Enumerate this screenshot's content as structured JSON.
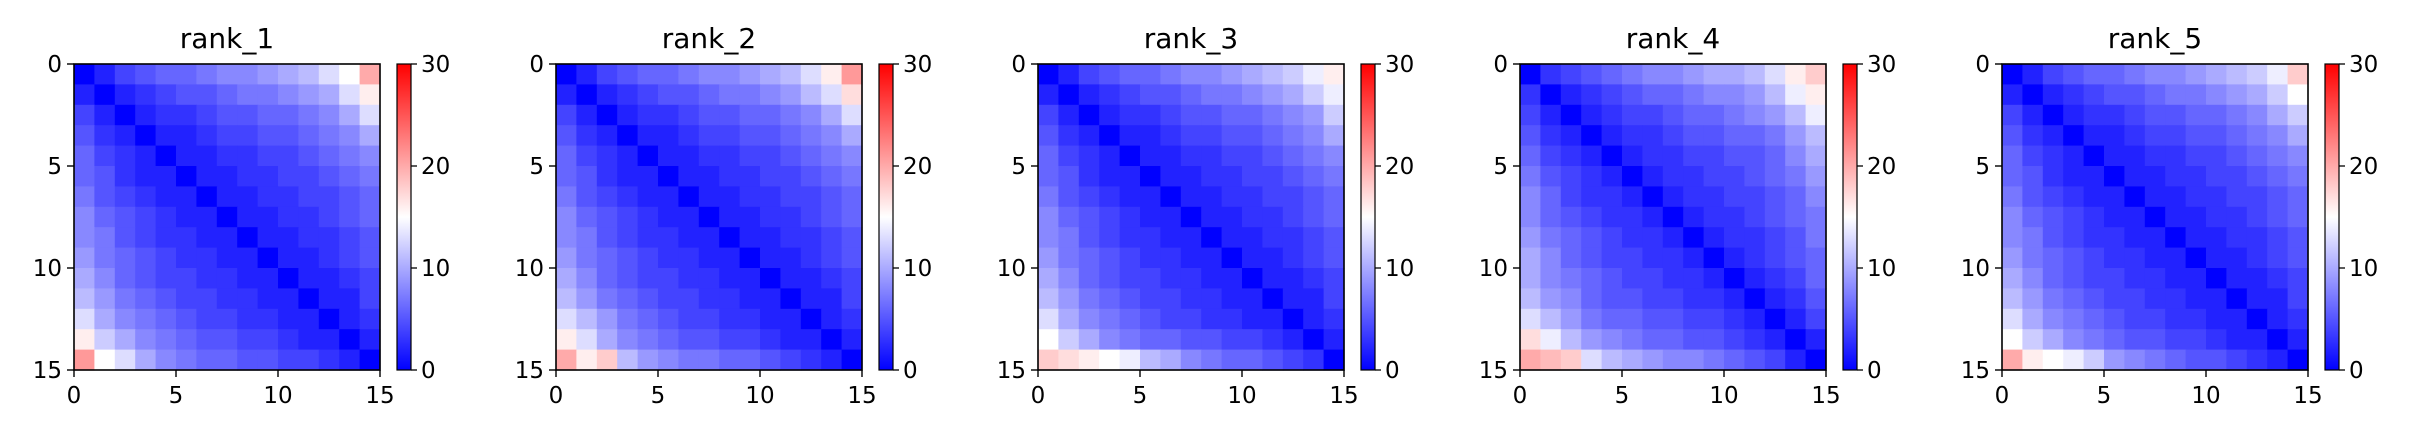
{
  "figure": {
    "colormap": {
      "name": "bwr",
      "low_color": "#0000ff",
      "mid_color": "#ffffff",
      "high_color": "#ff0000"
    },
    "axis_color": "#000000",
    "background": "#ffffff"
  },
  "chart_data": [
    {
      "type": "heatmap",
      "title": "rank_1",
      "xlim": [
        0,
        15
      ],
      "ylim": [
        15,
        0
      ],
      "x_ticks": [
        0,
        5,
        10,
        15
      ],
      "y_ticks": [
        0,
        5,
        10,
        15
      ],
      "colorbar": {
        "range": [
          0,
          30
        ],
        "ticks": [
          0,
          10,
          20,
          30
        ]
      },
      "diagonal_value": 0,
      "values": [
        [
          0,
          2,
          4,
          5,
          6,
          6,
          7,
          8,
          8,
          9,
          10,
          11,
          13,
          15,
          20
        ],
        [
          2,
          0,
          2,
          3,
          4,
          5,
          5,
          6,
          7,
          7,
          8,
          9,
          10,
          13,
          16
        ],
        [
          4,
          2,
          0,
          2,
          3,
          3,
          4,
          5,
          5,
          6,
          6,
          7,
          8,
          10,
          13
        ],
        [
          5,
          3,
          2,
          0,
          2,
          2,
          3,
          4,
          4,
          5,
          5,
          6,
          7,
          8,
          10
        ],
        [
          6,
          4,
          3,
          2,
          0,
          2,
          2,
          3,
          3,
          4,
          4,
          5,
          6,
          7,
          8
        ],
        [
          6,
          5,
          3,
          2,
          2,
          0,
          2,
          2,
          3,
          3,
          4,
          4,
          5,
          6,
          7
        ],
        [
          7,
          5,
          4,
          3,
          2,
          2,
          0,
          2,
          2,
          3,
          3,
          4,
          4,
          5,
          6
        ],
        [
          8,
          6,
          5,
          4,
          3,
          2,
          2,
          0,
          2,
          2,
          3,
          3,
          4,
          5,
          6
        ],
        [
          8,
          7,
          5,
          4,
          3,
          3,
          2,
          2,
          0,
          2,
          2,
          3,
          3,
          4,
          5
        ],
        [
          9,
          7,
          6,
          5,
          4,
          3,
          3,
          2,
          2,
          0,
          2,
          2,
          3,
          4,
          5
        ],
        [
          10,
          8,
          6,
          5,
          4,
          4,
          3,
          3,
          2,
          2,
          0,
          2,
          2,
          3,
          4
        ],
        [
          11,
          9,
          7,
          6,
          5,
          4,
          4,
          3,
          3,
          2,
          2,
          0,
          2,
          2,
          4
        ],
        [
          13,
          10,
          8,
          7,
          6,
          5,
          4,
          4,
          3,
          3,
          2,
          2,
          0,
          2,
          3
        ],
        [
          16,
          12,
          10,
          8,
          7,
          6,
          5,
          5,
          4,
          4,
          3,
          2,
          2,
          0,
          2
        ],
        [
          21,
          15,
          13,
          10,
          8,
          7,
          6,
          6,
          5,
          5,
          4,
          4,
          3,
          2,
          0
        ]
      ]
    },
    {
      "type": "heatmap",
      "title": "rank_2",
      "xlim": [
        0,
        15
      ],
      "ylim": [
        15,
        0
      ],
      "x_ticks": [
        0,
        5,
        10,
        15
      ],
      "y_ticks": [
        0,
        5,
        10,
        15
      ],
      "colorbar": {
        "range": [
          0,
          30
        ],
        "ticks": [
          0,
          10,
          20,
          30
        ]
      },
      "diagonal_value": 0,
      "values": [
        [
          0,
          2,
          4,
          5,
          6,
          6,
          7,
          8,
          8,
          9,
          10,
          11,
          13,
          16,
          21
        ],
        [
          2,
          0,
          2,
          3,
          4,
          5,
          5,
          6,
          7,
          7,
          8,
          9,
          11,
          13,
          17
        ],
        [
          4,
          2,
          0,
          2,
          3,
          3,
          4,
          5,
          5,
          6,
          6,
          7,
          8,
          10,
          13
        ],
        [
          5,
          3,
          2,
          0,
          2,
          2,
          3,
          4,
          4,
          5,
          5,
          6,
          7,
          8,
          10
        ],
        [
          6,
          4,
          3,
          2,
          0,
          2,
          2,
          3,
          3,
          4,
          4,
          5,
          6,
          7,
          8
        ],
        [
          6,
          5,
          3,
          2,
          2,
          0,
          2,
          2,
          3,
          3,
          4,
          4,
          5,
          6,
          7
        ],
        [
          7,
          5,
          4,
          3,
          2,
          2,
          0,
          2,
          2,
          3,
          3,
          4,
          4,
          5,
          6
        ],
        [
          8,
          6,
          5,
          4,
          3,
          2,
          2,
          0,
          2,
          2,
          3,
          3,
          4,
          5,
          6
        ],
        [
          8,
          7,
          5,
          4,
          3,
          3,
          2,
          2,
          0,
          2,
          2,
          3,
          3,
          4,
          5
        ],
        [
          9,
          7,
          6,
          5,
          4,
          3,
          3,
          2,
          2,
          0,
          2,
          2,
          3,
          4,
          5
        ],
        [
          10,
          8,
          6,
          5,
          4,
          4,
          3,
          3,
          2,
          2,
          0,
          2,
          2,
          3,
          4
        ],
        [
          11,
          9,
          7,
          6,
          5,
          4,
          4,
          3,
          3,
          2,
          2,
          0,
          2,
          2,
          4
        ],
        [
          13,
          11,
          9,
          7,
          6,
          5,
          4,
          4,
          3,
          3,
          2,
          2,
          0,
          2,
          3
        ],
        [
          16,
          13,
          10,
          8,
          7,
          6,
          5,
          5,
          4,
          4,
          3,
          2,
          2,
          0,
          2
        ],
        [
          20,
          16,
          18,
          11,
          9,
          8,
          7,
          7,
          6,
          6,
          5,
          4,
          3,
          2,
          0
        ]
      ]
    },
    {
      "type": "heatmap",
      "title": "rank_3",
      "xlim": [
        0,
        15
      ],
      "ylim": [
        15,
        0
      ],
      "x_ticks": [
        0,
        5,
        10,
        15
      ],
      "y_ticks": [
        0,
        5,
        10,
        15
      ],
      "colorbar": {
        "range": [
          0,
          30
        ],
        "ticks": [
          0,
          10,
          20,
          30
        ]
      },
      "diagonal_value": 0,
      "values": [
        [
          0,
          2,
          4,
          5,
          6,
          6,
          7,
          8,
          8,
          9,
          10,
          11,
          12,
          14,
          16
        ],
        [
          2,
          0,
          2,
          3,
          4,
          5,
          5,
          6,
          7,
          7,
          8,
          9,
          10,
          12,
          14
        ],
        [
          4,
          2,
          0,
          2,
          3,
          3,
          4,
          5,
          5,
          6,
          6,
          7,
          8,
          9,
          12
        ],
        [
          5,
          3,
          2,
          0,
          2,
          2,
          3,
          4,
          4,
          5,
          5,
          6,
          7,
          8,
          10
        ],
        [
          6,
          4,
          3,
          2,
          0,
          2,
          2,
          3,
          3,
          4,
          4,
          5,
          6,
          7,
          8
        ],
        [
          6,
          5,
          3,
          2,
          2,
          0,
          2,
          2,
          3,
          3,
          4,
          4,
          5,
          6,
          7
        ],
        [
          7,
          5,
          4,
          3,
          2,
          2,
          0,
          2,
          2,
          3,
          3,
          4,
          4,
          5,
          6
        ],
        [
          8,
          6,
          5,
          4,
          3,
          2,
          2,
          0,
          2,
          2,
          3,
          3,
          4,
          5,
          6
        ],
        [
          8,
          7,
          5,
          4,
          3,
          3,
          2,
          2,
          0,
          2,
          2,
          3,
          3,
          4,
          5
        ],
        [
          9,
          7,
          6,
          5,
          4,
          3,
          3,
          2,
          2,
          0,
          2,
          2,
          3,
          4,
          5
        ],
        [
          10,
          8,
          6,
          5,
          4,
          4,
          3,
          3,
          2,
          2,
          0,
          2,
          2,
          3,
          4
        ],
        [
          11,
          9,
          7,
          6,
          5,
          4,
          4,
          3,
          3,
          2,
          2,
          0,
          2,
          2,
          4
        ],
        [
          13,
          10,
          8,
          7,
          6,
          5,
          4,
          4,
          3,
          3,
          2,
          2,
          0,
          2,
          3
        ],
        [
          15,
          12,
          10,
          8,
          7,
          6,
          6,
          5,
          5,
          4,
          4,
          3,
          2,
          0,
          2
        ],
        [
          18,
          17,
          16,
          15,
          14,
          11,
          10,
          8,
          7,
          6,
          6,
          5,
          4,
          3,
          0
        ]
      ]
    },
    {
      "type": "heatmap",
      "title": "rank_4",
      "xlim": [
        0,
        15
      ],
      "ylim": [
        15,
        0
      ],
      "x_ticks": [
        0,
        5,
        10,
        15
      ],
      "y_ticks": [
        0,
        5,
        10,
        15
      ],
      "colorbar": {
        "range": [
          0,
          30
        ],
        "ticks": [
          0,
          10,
          20,
          30
        ]
      },
      "diagonal_value": 0,
      "values": [
        [
          0,
          3,
          4,
          5,
          6,
          7,
          8,
          8,
          9,
          10,
          10,
          11,
          13,
          16,
          18
        ],
        [
          3,
          0,
          2,
          3,
          4,
          5,
          6,
          6,
          7,
          8,
          8,
          9,
          11,
          14,
          16
        ],
        [
          4,
          2,
          0,
          2,
          3,
          4,
          4,
          5,
          6,
          6,
          7,
          8,
          9,
          11,
          14
        ],
        [
          5,
          3,
          2,
          0,
          2,
          3,
          3,
          4,
          5,
          5,
          6,
          6,
          7,
          9,
          11
        ],
        [
          6,
          4,
          3,
          2,
          0,
          2,
          3,
          3,
          4,
          4,
          5,
          5,
          6,
          8,
          10
        ],
        [
          7,
          5,
          4,
          3,
          2,
          0,
          2,
          3,
          3,
          4,
          4,
          5,
          6,
          7,
          9
        ],
        [
          8,
          6,
          4,
          3,
          3,
          2,
          0,
          2,
          3,
          3,
          4,
          4,
          5,
          6,
          8
        ],
        [
          8,
          6,
          5,
          4,
          3,
          3,
          2,
          0,
          2,
          3,
          3,
          4,
          5,
          6,
          7
        ],
        [
          9,
          7,
          6,
          5,
          4,
          3,
          3,
          2,
          0,
          2,
          3,
          3,
          4,
          5,
          7
        ],
        [
          10,
          8,
          6,
          5,
          4,
          4,
          3,
          3,
          2,
          0,
          2,
          3,
          4,
          5,
          6
        ],
        [
          10,
          8,
          7,
          6,
          5,
          4,
          4,
          3,
          3,
          2,
          0,
          2,
          3,
          4,
          6
        ],
        [
          11,
          9,
          8,
          6,
          5,
          5,
          4,
          4,
          3,
          3,
          2,
          0,
          2,
          3,
          5
        ],
        [
          13,
          11,
          9,
          7,
          6,
          6,
          5,
          5,
          4,
          4,
          3,
          2,
          0,
          2,
          4
        ],
        [
          17,
          14,
          11,
          9,
          8,
          7,
          6,
          6,
          5,
          5,
          4,
          3,
          2,
          0,
          2
        ],
        [
          20,
          19,
          18,
          13,
          11,
          10,
          9,
          8,
          8,
          7,
          6,
          5,
          4,
          2,
          0
        ]
      ]
    },
    {
      "type": "heatmap",
      "title": "rank_5",
      "xlim": [
        0,
        15
      ],
      "ylim": [
        15,
        0
      ],
      "x_ticks": [
        0,
        5,
        10,
        15
      ],
      "y_ticks": [
        0,
        5,
        10,
        15
      ],
      "colorbar": {
        "range": [
          0,
          30
        ],
        "ticks": [
          0,
          10,
          20,
          30
        ]
      },
      "diagonal_value": 0,
      "values": [
        [
          0,
          2,
          4,
          5,
          6,
          6,
          7,
          8,
          8,
          9,
          10,
          11,
          12,
          14,
          18
        ],
        [
          2,
          0,
          2,
          3,
          4,
          5,
          5,
          6,
          7,
          7,
          8,
          9,
          10,
          12,
          15
        ],
        [
          4,
          2,
          0,
          2,
          3,
          3,
          4,
          5,
          5,
          6,
          6,
          7,
          8,
          10,
          12
        ],
        [
          5,
          3,
          2,
          0,
          2,
          2,
          3,
          4,
          4,
          5,
          5,
          6,
          7,
          8,
          10
        ],
        [
          6,
          4,
          3,
          2,
          0,
          2,
          2,
          3,
          3,
          4,
          4,
          5,
          6,
          7,
          8
        ],
        [
          6,
          5,
          3,
          2,
          2,
          0,
          2,
          2,
          3,
          3,
          4,
          4,
          5,
          6,
          7
        ],
        [
          7,
          5,
          4,
          3,
          2,
          2,
          0,
          2,
          2,
          3,
          3,
          4,
          4,
          5,
          6
        ],
        [
          8,
          6,
          5,
          4,
          3,
          2,
          2,
          0,
          2,
          2,
          3,
          3,
          4,
          5,
          6
        ],
        [
          8,
          7,
          5,
          4,
          3,
          3,
          2,
          2,
          0,
          2,
          2,
          3,
          3,
          4,
          5
        ],
        [
          9,
          7,
          6,
          5,
          4,
          3,
          3,
          2,
          2,
          0,
          2,
          2,
          3,
          4,
          5
        ],
        [
          10,
          8,
          6,
          5,
          4,
          4,
          3,
          3,
          2,
          2,
          0,
          2,
          2,
          3,
          4
        ],
        [
          11,
          9,
          7,
          6,
          5,
          4,
          4,
          3,
          3,
          2,
          2,
          0,
          2,
          2,
          4
        ],
        [
          13,
          10,
          8,
          7,
          6,
          5,
          4,
          4,
          3,
          3,
          2,
          2,
          0,
          2,
          3
        ],
        [
          15,
          12,
          10,
          8,
          7,
          6,
          5,
          5,
          4,
          4,
          3,
          2,
          2,
          0,
          2
        ],
        [
          20,
          16,
          15,
          14,
          12,
          9,
          8,
          7,
          6,
          5,
          5,
          4,
          3,
          2,
          0
        ]
      ]
    }
  ]
}
